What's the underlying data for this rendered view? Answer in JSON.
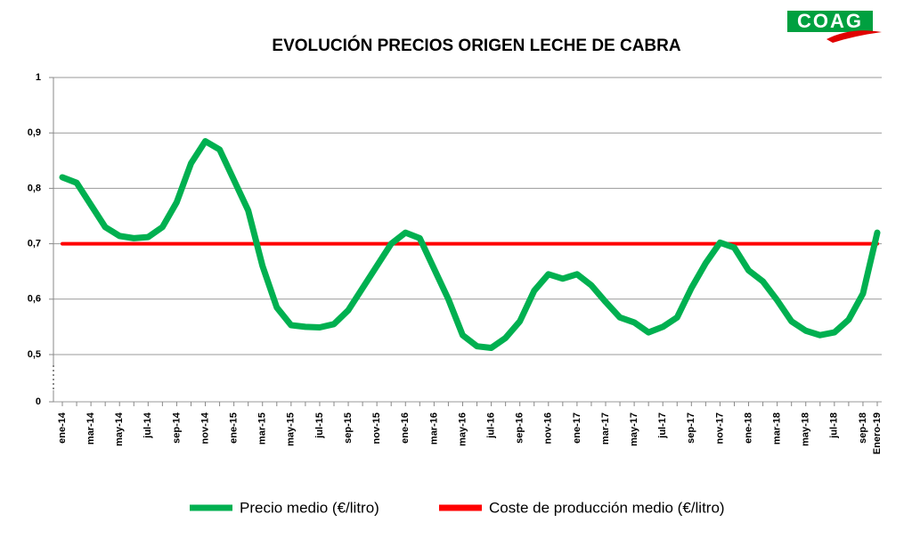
{
  "logo": "COAG",
  "chart_data": {
    "type": "line",
    "title": "EVOLUCIÓN PRECIOS ORIGEN LECHE DE CABRA",
    "categories": [
      "ene-14",
      null,
      "mar-14",
      null,
      "may-14",
      null,
      "jul-14",
      null,
      "sep-14",
      null,
      "nov-14",
      null,
      "ene-15",
      null,
      "mar-15",
      null,
      "may-15",
      null,
      "jul-15",
      null,
      "sep-15",
      null,
      "nov-15",
      null,
      "ene-16",
      null,
      "mar-16",
      null,
      "may-16",
      null,
      "jul-16",
      null,
      "sep-16",
      null,
      "nov-16",
      null,
      "ene-17",
      null,
      "mar-17",
      null,
      "may-17",
      null,
      "jul-17",
      null,
      "sep-17",
      null,
      "nov-17",
      null,
      "ene-18",
      null,
      "mar-18",
      null,
      "may-18",
      null,
      "jul-18",
      null,
      "sep-18",
      "Enero-19"
    ],
    "series": [
      {
        "name": "Precio medio (€/litro)",
        "color": "#00b050",
        "values": [
          0.82,
          0.81,
          0.77,
          0.73,
          0.714,
          0.71,
          0.712,
          0.73,
          0.775,
          0.845,
          0.885,
          0.87,
          0.815,
          0.76,
          0.66,
          0.585,
          0.553,
          0.55,
          0.549,
          0.555,
          0.58,
          0.62,
          0.66,
          0.7,
          0.72,
          0.71,
          0.655,
          0.6,
          0.535,
          0.515,
          0.512,
          0.53,
          0.56,
          0.615,
          0.645,
          0.637,
          0.645,
          0.625,
          0.595,
          0.567,
          0.558,
          0.54,
          0.55,
          0.567,
          0.62,
          0.665,
          0.702,
          0.693,
          0.652,
          0.632,
          0.598,
          0.56,
          0.543,
          0.535,
          0.54,
          0.563,
          0.61,
          0.72
        ]
      },
      {
        "name": "Coste de producción medio  (€/litro)",
        "color": "#ff0000",
        "values": [
          0.7,
          0.7,
          0.7,
          0.7,
          0.7,
          0.7,
          0.7,
          0.7,
          0.7,
          0.7,
          0.7,
          0.7,
          0.7,
          0.7,
          0.7,
          0.7,
          0.7,
          0.7,
          0.7,
          0.7,
          0.7,
          0.7,
          0.7,
          0.7,
          0.7,
          0.7,
          0.7,
          0.7,
          0.7,
          0.7,
          0.7,
          0.7,
          0.7,
          0.7,
          0.7,
          0.7,
          0.7,
          0.7,
          0.7,
          0.7,
          0.7,
          0.7,
          0.7,
          0.7,
          0.7,
          0.7,
          0.7,
          0.7,
          0.7,
          0.7,
          0.7,
          0.7,
          0.7,
          0.7,
          0.7,
          0.7,
          0.7,
          0.7
        ]
      }
    ],
    "ylim": [
      0,
      1
    ],
    "y_axis_break": [
      0,
      0.5
    ],
    "yticks": [
      0,
      {
        "value": 0.5,
        "label": "0,5"
      },
      {
        "value": 0.6,
        "label": "0,6"
      },
      {
        "value": 0.7,
        "label": "0,7"
      },
      {
        "value": 0.8,
        "label": "0,8"
      },
      {
        "value": 0.9,
        "label": "0,9"
      },
      1
    ],
    "grid": true,
    "legend": "bottom"
  }
}
